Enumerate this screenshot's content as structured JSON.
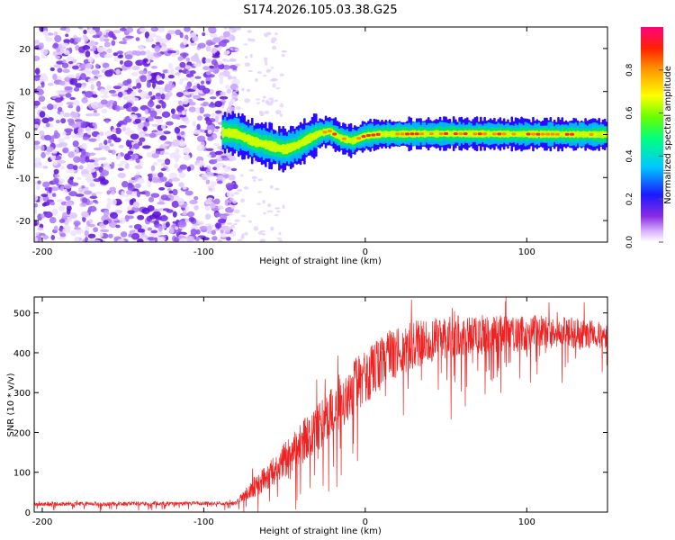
{
  "title": "S174.2026.105.03.38.G25",
  "colors": {
    "snr_line": "#ee2222",
    "scatter_purple": "#7b2ff0",
    "axis": "#000000"
  },
  "chart_data": [
    {
      "type": "heatmap",
      "name": "spectrogram",
      "xlabel": "Height of straight line (km)",
      "ylabel": "Frequency (Hz)",
      "xlim": [
        -205,
        150
      ],
      "ylim": [
        -25,
        25
      ],
      "x_ticks": [
        "-200",
        "-100",
        "0",
        "100"
      ],
      "y_ticks": [
        "20",
        "10",
        "0",
        "-10",
        "-20"
      ],
      "noise_region_x": [
        -205,
        -80
      ],
      "signal_start_x": -88,
      "signal_track": [
        {
          "x": -88,
          "freq": 0.5
        },
        {
          "x": -80,
          "freq": 0.2
        },
        {
          "x": -70,
          "freq": -1.5
        },
        {
          "x": -60,
          "freq": -2.5
        },
        {
          "x": -50,
          "freq": -3.5
        },
        {
          "x": -42,
          "freq": -2.5
        },
        {
          "x": -35,
          "freq": -1.0
        },
        {
          "x": -28,
          "freq": 0.3
        },
        {
          "x": -22,
          "freq": 0.8
        },
        {
          "x": -15,
          "freq": -0.8
        },
        {
          "x": -8,
          "freq": -1.5
        },
        {
          "x": 0,
          "freq": -0.3
        },
        {
          "x": 10,
          "freq": 0.1
        },
        {
          "x": 50,
          "freq": 0.2
        },
        {
          "x": 100,
          "freq": 0.1
        },
        {
          "x": 150,
          "freq": 0.0
        }
      ]
    },
    {
      "type": "line",
      "name": "snr",
      "xlabel": "Height of straight line (km)",
      "ylabel": "SNR (10 * v/v)",
      "xlim": [
        -205,
        150
      ],
      "ylim": [
        0,
        540
      ],
      "x_ticks": [
        "-200",
        "-100",
        "0",
        "100"
      ],
      "y_ticks": [
        "0",
        "100",
        "200",
        "300",
        "400",
        "500"
      ],
      "envelope": [
        {
          "x": -205,
          "mean": 20,
          "spread": 10
        },
        {
          "x": -80,
          "mean": 22,
          "spread": 10
        },
        {
          "x": -70,
          "mean": 60,
          "spread": 50
        },
        {
          "x": -60,
          "mean": 90,
          "spread": 70
        },
        {
          "x": -50,
          "mean": 130,
          "spread": 90
        },
        {
          "x": -40,
          "mean": 170,
          "spread": 110
        },
        {
          "x": -30,
          "mean": 210,
          "spread": 120
        },
        {
          "x": -20,
          "mean": 250,
          "spread": 130
        },
        {
          "x": -10,
          "mean": 300,
          "spread": 140
        },
        {
          "x": 0,
          "mean": 340,
          "spread": 140
        },
        {
          "x": 15,
          "mean": 390,
          "spread": 130
        },
        {
          "x": 30,
          "mean": 420,
          "spread": 120
        },
        {
          "x": 50,
          "mean": 440,
          "spread": 110
        },
        {
          "x": 75,
          "mean": 445,
          "spread": 100
        },
        {
          "x": 100,
          "mean": 450,
          "spread": 90
        },
        {
          "x": 125,
          "mean": 450,
          "spread": 80
        },
        {
          "x": 150,
          "mean": 445,
          "spread": 70
        }
      ]
    }
  ],
  "colorbar": {
    "label": "Normalized spectral amplitude",
    "ticks": [
      "0.0",
      "0.2",
      "0.4",
      "0.6",
      "0.8"
    ],
    "range": [
      0,
      1
    ]
  }
}
